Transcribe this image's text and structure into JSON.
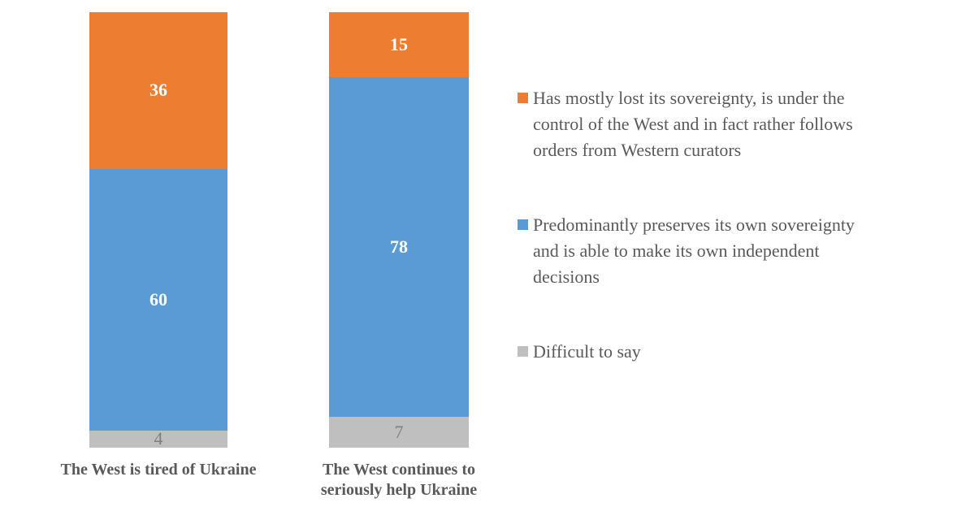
{
  "chart_data": {
    "type": "bar",
    "stacked": true,
    "unit": "percent",
    "ylim": [
      0,
      100
    ],
    "grid": false,
    "legend_position": "right",
    "text_color": "#595959",
    "categories": [
      "The West is tired of Ukraine",
      "The West continues to seriously help Ukraine"
    ],
    "category_label_lines": [
      [
        "The West is tired of Ukraine"
      ],
      [
        "The West continues to",
        "seriously help Ukraine"
      ]
    ],
    "series": [
      {
        "name": "Has mostly lost its sovereignty, is under the control of the West and in fact rather follows orders from Western curators",
        "name_lines": [
          "Has mostly lost its sovereignty, is under the",
          "control of the West and in fact rather follows",
          "orders from Western curators"
        ],
        "color": "#ED7D31",
        "values": [
          36,
          15
        ],
        "value_label_color": "#FFFFFF",
        "value_label_bold": true
      },
      {
        "name": "Predominantly preserves its own sovereignty and is able to make its own independent decisions",
        "name_lines": [
          "Predominantly preserves its own sovereignty",
          "and is able to make its own independent",
          "decisions"
        ],
        "color": "#5B9BD5",
        "values": [
          60,
          78
        ],
        "value_label_color": "#FFFFFF",
        "value_label_bold": true
      },
      {
        "name": "Difficult to say",
        "name_lines": [
          "Difficult to say"
        ],
        "color": "#BFBFBF",
        "values": [
          4,
          7
        ],
        "value_label_color": "#7F7F7F",
        "value_label_bold": false
      }
    ]
  }
}
